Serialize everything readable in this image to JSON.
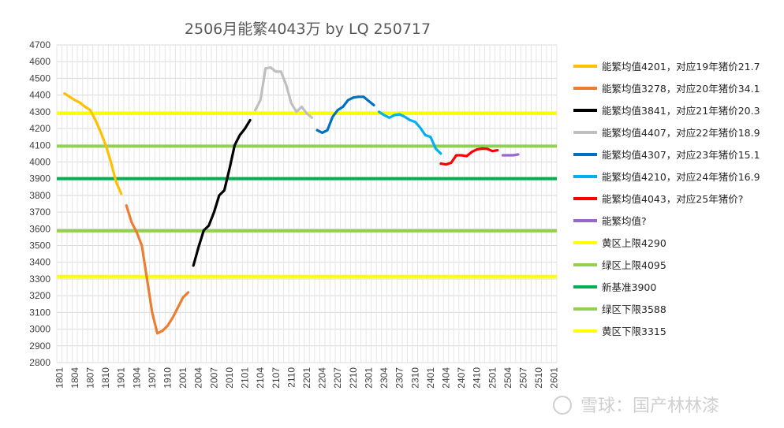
{
  "chart_data": {
    "type": "line",
    "title": "2506月能繁4043万 by LQ 250717",
    "ylim": [
      2800,
      4700
    ],
    "y_ticks": [
      2800,
      2900,
      3000,
      3100,
      3200,
      3300,
      3400,
      3500,
      3600,
      3700,
      3800,
      3900,
      4000,
      4100,
      4200,
      4300,
      4400,
      4500,
      4600,
      4700
    ],
    "x_ticks": [
      "1801",
      "1804",
      "1807",
      "1810",
      "1901",
      "1904",
      "1907",
      "1910",
      "2001",
      "2004",
      "2007",
      "2010",
      "2101",
      "2104",
      "2107",
      "2110",
      "2201",
      "2204",
      "2207",
      "2210",
      "2301",
      "2304",
      "2307",
      "2310",
      "2401",
      "2404",
      "2407",
      "2410",
      "2501",
      "2504",
      "2507",
      "2510",
      "2601"
    ],
    "gridlines": true,
    "legend_position": "right",
    "series": [
      {
        "name": "能繁均值4201，对应19年猪价21.7",
        "color": "#ffc000",
        "x": [
          1,
          2,
          3,
          4,
          5,
          6,
          7,
          8,
          9,
          10,
          11,
          12,
          13,
          14
        ],
        "values": [
          4410,
          4390,
          4370,
          4355,
          4330,
          4310,
          4250,
          4180,
          4100,
          4000,
          3880,
          3810,
          null,
          null
        ]
      },
      {
        "name": "能繁均值3278，对应20年猪价34.1",
        "color": "#ed7d31",
        "x": [
          13,
          14,
          15,
          16,
          17,
          18,
          19,
          20,
          21,
          22,
          23,
          24,
          25,
          26
        ],
        "values": [
          3740,
          3640,
          3580,
          3500,
          3300,
          3100,
          2975,
          2990,
          3020,
          3070,
          3130,
          3190,
          3220,
          null
        ]
      },
      {
        "name": "能繁均值3841，对应21年猪价20.3",
        "color": "#000000",
        "x": [
          26,
          27,
          28,
          29,
          30,
          31,
          32,
          33,
          34,
          35,
          36,
          37,
          38
        ],
        "values": [
          3380,
          3490,
          3590,
          3620,
          3700,
          3800,
          3830,
          3960,
          4100,
          4160,
          4200,
          4250,
          null
        ]
      },
      {
        "name": "能繁均值4407，对应22年猪价18.9",
        "color": "#bfbfbf",
        "x": [
          38,
          39,
          40,
          41,
          42,
          43,
          44,
          45,
          46,
          47,
          48,
          49,
          50
        ],
        "values": [
          4310,
          4370,
          4560,
          4565,
          4540,
          4540,
          4460,
          4350,
          4300,
          4330,
          4290,
          4265,
          null
        ]
      },
      {
        "name": "能繁均值4307，对应23年猪价15.1",
        "color": "#0070c0",
        "x": [
          50,
          51,
          52,
          53,
          54,
          55,
          56,
          57,
          58,
          59,
          60,
          61,
          62
        ],
        "values": [
          4190,
          4175,
          4190,
          4270,
          4310,
          4330,
          4370,
          4385,
          4390,
          4390,
          4365,
          4340,
          null
        ]
      },
      {
        "name": "能繁均值4210，对应24年猪价16.9",
        "color": "#00b0f0",
        "x": [
          62,
          63,
          64,
          65,
          66,
          67,
          68,
          69,
          70,
          71,
          72,
          73,
          74
        ],
        "values": [
          4300,
          4280,
          4265,
          4280,
          4285,
          4270,
          4250,
          4240,
          4205,
          4160,
          4150,
          4080,
          4050
        ]
      },
      {
        "name": "能繁均值4043，对应25年猪价?",
        "color": "#ff0000",
        "x": [
          74,
          75,
          76,
          77,
          78,
          79,
          80,
          81,
          82,
          83,
          84,
          85
        ],
        "values": [
          3990,
          3985,
          3995,
          4040,
          4040,
          4035,
          4060,
          4075,
          4080,
          4078,
          4065,
          4070
        ]
      },
      {
        "name": "能繁均值?",
        "color": "#9966cc",
        "x": [
          86,
          87,
          88,
          89
        ],
        "values": [
          4040,
          4040,
          4040,
          4045
        ]
      },
      {
        "name": "黄区上限4290",
        "color": "#ffff00",
        "constant": 4290
      },
      {
        "name": "绿区上限4095",
        "color": "#92d050",
        "constant": 4095
      },
      {
        "name": "新基准3900",
        "color": "#00b050",
        "constant": 3900
      },
      {
        "name": "绿区下限3588",
        "color": "#92d050",
        "constant": 3588
      },
      {
        "name": "黄区下限3315",
        "color": "#ffff00",
        "constant": 3315
      }
    ]
  },
  "watermark": {
    "text": "雪球：国产林林漆"
  }
}
